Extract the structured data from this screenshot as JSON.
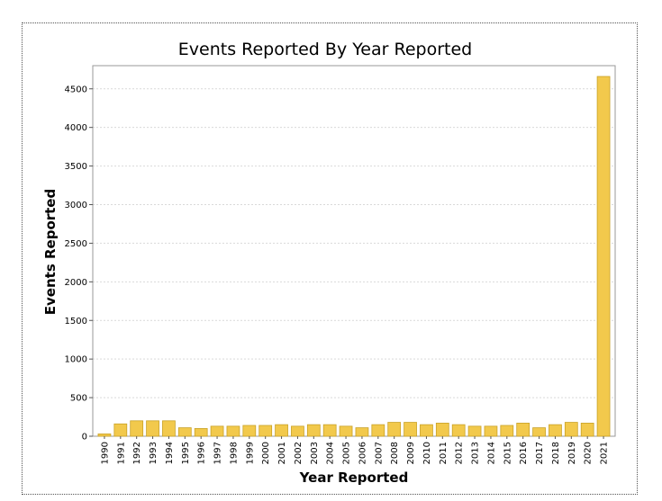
{
  "chart_data": {
    "type": "bar",
    "title": "Events Reported By Year Reported",
    "xlabel": "Year Reported",
    "ylabel": "Events Reported",
    "ylim": [
      0,
      4800
    ],
    "yticks": [
      0,
      500,
      1000,
      1500,
      2000,
      2500,
      3000,
      3500,
      4000,
      4500
    ],
    "grid": true,
    "bar_color": "#F2C94C",
    "bar_edge_color": "#C9A227",
    "categories": [
      "1990",
      "1991",
      "1992",
      "1993",
      "1994",
      "1995",
      "1996",
      "1997",
      "1998",
      "1999",
      "2000",
      "2001",
      "2002",
      "2003",
      "2004",
      "2005",
      "2006",
      "2007",
      "2008",
      "2009",
      "2010",
      "2011",
      "2012",
      "2013",
      "2014",
      "2015",
      "2016",
      "2017",
      "2018",
      "2019",
      "2020",
      "2021"
    ],
    "values": [
      30,
      160,
      200,
      200,
      200,
      110,
      100,
      130,
      130,
      140,
      140,
      150,
      130,
      150,
      150,
      130,
      110,
      150,
      180,
      180,
      150,
      170,
      150,
      130,
      130,
      140,
      170,
      110,
      150,
      180,
      170,
      4660
    ]
  }
}
